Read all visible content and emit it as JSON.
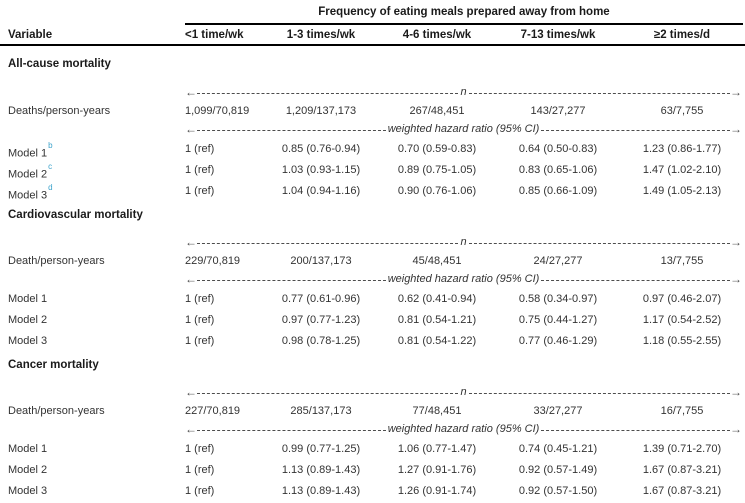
{
  "table": {
    "title": "Frequency of eating meals prepared away from home",
    "variable_header": "Variable",
    "column_headers": [
      "<1 time/wk",
      "1-3 times/wk",
      "4-6 times/wk",
      "7-13 times/wk",
      "≥2 times/d"
    ],
    "arrows": {
      "left": "←",
      "right": "→"
    },
    "span_labels": {
      "n": "n",
      "whr": "weighted hazard ratio (95% CI)"
    },
    "colors": {
      "superscript_blue": "#3ba2cb",
      "text": "#333333",
      "heading": "#1a1a1a"
    },
    "sections": [
      {
        "title": "All-cause mortality",
        "deaths_label": "Deaths/person-years",
        "deaths": [
          "1,099/70,819",
          "1,209/137,173",
          "267/48,451",
          "143/27,277",
          "63/7,755"
        ],
        "models": [
          {
            "label": "Model 1",
            "sup": "b",
            "values": [
              "1 (ref)",
              "0.85 (0.76-0.94)",
              "0.70 (0.59-0.83)",
              "0.64 (0.50-0.83)",
              "1.23 (0.86-1.77)"
            ]
          },
          {
            "label": "Model 2",
            "sup": "c",
            "values": [
              "1 (ref)",
              "1.03 (0.93-1.15)",
              "0.89 (0.75-1.05)",
              "0.83 (0.65-1.06)",
              "1.47 (1.02-2.10)"
            ]
          },
          {
            "label": "Model 3",
            "sup": "d",
            "values": [
              "1 (ref)",
              "1.04 (0.94-1.16)",
              "0.90 (0.76-1.06)",
              "0.85 (0.66-1.09)",
              "1.49 (1.05-2.13)"
            ]
          }
        ]
      },
      {
        "title": "Cardiovascular mortality",
        "deaths_label": "Death/person-years",
        "deaths": [
          "229/70,819",
          "200/137,173",
          "45/48,451",
          "24/27,277",
          "13/7,755"
        ],
        "models": [
          {
            "label": "Model 1",
            "values": [
              "1 (ref)",
              "0.77 (0.61-0.96)",
              "0.62 (0.41-0.94)",
              "0.58 (0.34-0.97)",
              "0.97 (0.46-2.07)"
            ]
          },
          {
            "label": "Model 2",
            "values": [
              "1 (ref)",
              "0.97 (0.77-1.23)",
              "0.81 (0.54-1.21)",
              "0.75 (0.44-1.27)",
              "1.17 (0.54-2.52)"
            ]
          },
          {
            "label": "Model 3",
            "values": [
              "1 (ref)",
              "0.98 (0.78-1.25)",
              "0.81 (0.54-1.22)",
              "0.77 (0.46-1.29)",
              "1.18 (0.55-2.55)"
            ]
          }
        ]
      },
      {
        "title": "Cancer mortality",
        "deaths_label": "Death/person-years",
        "deaths": [
          "227/70,819",
          "285/137,173",
          "77/48,451",
          "33/27,277",
          "16/7,755"
        ],
        "models": [
          {
            "label": "Model 1",
            "values": [
              "1 (ref)",
              "0.99 (0.77-1.25)",
              "1.06 (0.77-1.47)",
              "0.74 (0.45-1.21)",
              "1.39 (0.71-2.70)"
            ]
          },
          {
            "label": "Model 2",
            "values": [
              "1 (ref)",
              "1.13 (0.89-1.43)",
              "1.27 (0.91-1.76)",
              "0.92 (0.57-1.49)",
              "1.67 (0.87-3.21)"
            ]
          },
          {
            "label": "Model 3",
            "values": [
              "1 (ref)",
              "1.13 (0.89-1.43)",
              "1.26 (0.91-1.74)",
              "0.92 (0.57-1.50)",
              "1.67 (0.87-3.21)"
            ]
          }
        ]
      }
    ]
  }
}
